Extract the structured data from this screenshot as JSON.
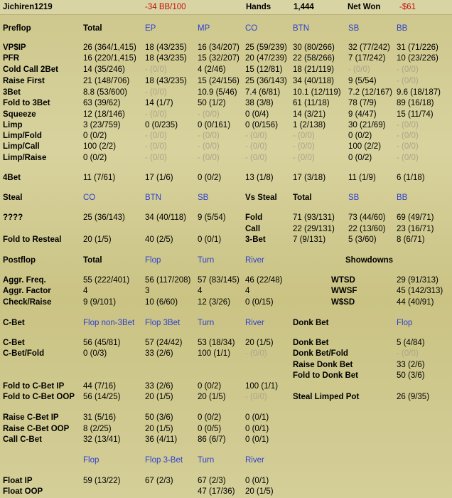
{
  "header": {
    "player": "Jichiren1219",
    "bb100": "-34 BB/100",
    "hands_label": "Hands",
    "hands": "1,444",
    "netwon_label": "Net Won",
    "netwon": "-$61"
  },
  "pre": {
    "title": "Preflop",
    "total": "Total",
    "pos": [
      "EP",
      "MP",
      "CO",
      "BTN",
      "SB",
      "BB"
    ],
    "rows": [
      {
        "label": "VP$IP",
        "total": "26 (364/1,415)",
        "vals": [
          "18 (43/235)",
          "16 (34/207)",
          "25 (59/239)",
          "30 (80/266)",
          "32 (77/242)",
          "31 (71/226)"
        ]
      },
      {
        "label": "PFR",
        "total": "16 (220/1,415)",
        "vals": [
          "18 (43/235)",
          "15 (32/207)",
          "20 (47/239)",
          "22 (58/266)",
          "7 (17/242)",
          "10 (23/226)"
        ]
      },
      {
        "label": "Cold Call 2Bet",
        "total": "14 (35/246)",
        "vals": [
          "- (0/0)",
          "4 (2/46)",
          "15 (12/81)",
          "18 (21/119)",
          "- (0/0)",
          "- (0/0)"
        ]
      },
      {
        "label": "Raise First",
        "total": "21 (148/706)",
        "vals": [
          "18 (43/235)",
          "15 (24/156)",
          "25 (36/143)",
          "34 (40/118)",
          "9 (5/54)",
          "- (0/0)"
        ]
      },
      {
        "label": "3Bet",
        "total": "8.8 (53/600)",
        "vals": [
          "- (0/0)",
          "10.9 (5/46)",
          "7.4 (6/81)",
          "10.1 (12/119)",
          "7.2 (12/167)",
          "9.6 (18/187)"
        ]
      },
      {
        "label": "Fold to 3Bet",
        "total": "63 (39/62)",
        "vals": [
          "14 (1/7)",
          "50 (1/2)",
          "38 (3/8)",
          "61 (11/18)",
          "78 (7/9)",
          "89 (16/18)"
        ]
      },
      {
        "label": "Squeeze",
        "total": "12 (18/146)",
        "vals": [
          "- (0/0)",
          "- (0/0)",
          "0 (0/4)",
          "14 (3/21)",
          "9 (4/47)",
          "15 (11/74)"
        ]
      },
      {
        "label": "Limp",
        "total": "3 (23/759)",
        "vals": [
          "0 (0/235)",
          "0 (0/161)",
          "0 (0/156)",
          "1 (2/138)",
          "30 (21/69)",
          "- (0/0)"
        ]
      },
      {
        "label": "Limp/Fold",
        "total": "0 (0/2)",
        "vals": [
          "- (0/0)",
          "- (0/0)",
          "- (0/0)",
          "- (0/0)",
          "0 (0/2)",
          "- (0/0)"
        ]
      },
      {
        "label": "Limp/Call",
        "total": "100 (2/2)",
        "vals": [
          "- (0/0)",
          "- (0/0)",
          "- (0/0)",
          "- (0/0)",
          "100 (2/2)",
          "- (0/0)"
        ]
      },
      {
        "label": "Limp/Raise",
        "total": "0 (0/2)",
        "vals": [
          "- (0/0)",
          "- (0/0)",
          "- (0/0)",
          "- (0/0)",
          "0 (0/2)",
          "- (0/0)"
        ]
      },
      {
        "label": "4Bet",
        "total": "11 (7/61)",
        "vals": [
          "17 (1/6)",
          "0 (0/2)",
          "13 (1/8)",
          "17 (3/18)",
          "11 (1/9)",
          "6 (1/18)"
        ]
      }
    ]
  },
  "steal": {
    "title": "Steal",
    "pos": [
      "CO",
      "BTN",
      "SB"
    ],
    "rows": [
      {
        "label": "????",
        "vals": [
          "25 (36/143)",
          "34 (40/118)",
          "9 (5/54)"
        ]
      },
      {
        "label": "Fold to Resteal",
        "vals": [
          "20 (1/5)",
          "40 (2/5)",
          "0 (0/1)"
        ]
      }
    ]
  },
  "vs_steal": {
    "title": "Vs Steal",
    "cols": [
      "Total",
      "SB",
      "BB"
    ],
    "rows": [
      {
        "label": "Fold",
        "vals": [
          "71 (93/131)",
          "73 (44/60)",
          "69 (49/71)"
        ]
      },
      {
        "label": "Call",
        "vals": [
          "22 (29/131)",
          "22 (13/60)",
          "23 (16/71)"
        ]
      },
      {
        "label": "3-Bet",
        "vals": [
          "7 (9/131)",
          "5 (3/60)",
          "8 (6/71)"
        ]
      }
    ]
  },
  "post": {
    "title": "Postflop",
    "cols": [
      "Total",
      "Flop",
      "Turn",
      "River"
    ],
    "rows": [
      {
        "label": "Aggr. Freq.",
        "vals": [
          "55 (222/401)",
          "56 (117/208)",
          "57 (83/145)",
          "46 (22/48)"
        ]
      },
      {
        "label": "Aggr. Factor",
        "vals": [
          "4",
          "3",
          "4",
          "4"
        ]
      },
      {
        "label": "Check/Raise",
        "vals": [
          "9 (9/101)",
          "10 (6/60)",
          "12 (3/26)",
          "0 (0/15)"
        ]
      }
    ]
  },
  "showdowns": {
    "title": "Showdowns",
    "rows": [
      {
        "label": "WTSD",
        "val": "29 (91/313)"
      },
      {
        "label": "WWSF",
        "val": "45 (142/313)"
      },
      {
        "label": "W$SD",
        "val": "44 (40/91)"
      }
    ]
  },
  "cbet": {
    "title": "C-Bet",
    "cols": [
      "Flop non-3Bet",
      "Flop 3Bet",
      "Turn",
      "River"
    ],
    "rows": [
      {
        "label": "C-Bet",
        "vals": [
          "56 (45/81)",
          "57 (24/42)",
          "53 (18/34)",
          "20 (1/5)"
        ]
      },
      {
        "label": "C-Bet/Fold",
        "vals": [
          "0 (0/3)",
          "33 (2/6)",
          "100 (1/1)",
          "- (0/0)"
        ]
      },
      {
        "label": "Fold to C-Bet IP",
        "vals": [
          "44 (7/16)",
          "33 (2/6)",
          "0 (0/2)",
          "100 (1/1)"
        ]
      },
      {
        "label": "Fold to C-Bet OOP",
        "vals": [
          "56 (14/25)",
          "20 (1/5)",
          "20 (1/5)",
          "- (0/0)"
        ]
      },
      {
        "label": "Raise C-Bet IP",
        "vals": [
          "31 (5/16)",
          "50 (3/6)",
          "0 (0/2)",
          "0 (0/1)"
        ]
      },
      {
        "label": "Raise C-Bet OOP",
        "vals": [
          "8 (2/25)",
          "20 (1/5)",
          "0 (0/5)",
          "0 (0/1)"
        ]
      },
      {
        "label": "Call C-Bet",
        "vals": [
          "32 (13/41)",
          "36 (4/11)",
          "86 (6/7)",
          "0 (0/1)"
        ]
      }
    ]
  },
  "donk": {
    "title": "Donk Bet",
    "col": "Flop",
    "rows": [
      {
        "label": "Donk Bet",
        "val": "5 (4/84)"
      },
      {
        "label": "Donk Bet/Fold",
        "val": "- (0/0)"
      },
      {
        "label": "Raise Donk Bet",
        "val": "33 (2/6)"
      },
      {
        "label": "Fold to Donk Bet",
        "val": "50 (3/6)"
      },
      {
        "label": "Steal Limped Pot",
        "val": "26 (9/35)"
      }
    ]
  },
  "float": {
    "cols": [
      "Flop",
      "Flop 3-Bet",
      "Turn",
      "River"
    ],
    "rows": [
      {
        "label": "Float IP",
        "vals": [
          "59 (13/22)",
          "67 (2/3)",
          "67 (2/3)",
          "0 (0/1)"
        ]
      },
      {
        "label": "Float OOP",
        "vals": [
          "",
          "",
          "47 (17/36)",
          "20 (1/5)"
        ]
      }
    ]
  },
  "colors": {
    "header_blue": "#2b3fd1",
    "negative_red": "#c41010",
    "dash_gray": "#aaa58a",
    "background": "#cfc88f"
  }
}
